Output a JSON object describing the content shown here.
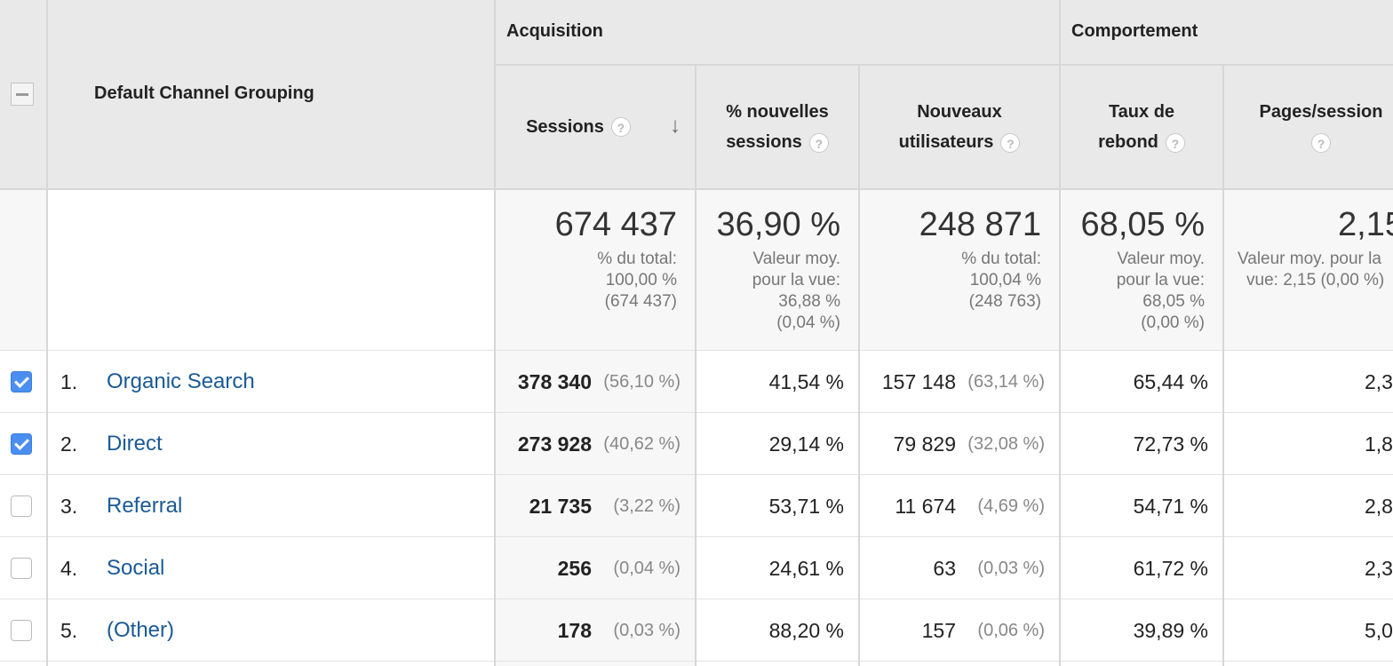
{
  "header": {
    "dimension_label": "Default Channel Grouping",
    "groups": {
      "acquisition": "Acquisition",
      "behaviour": "Comportement"
    },
    "columns": {
      "sessions": "Sessions",
      "new_sessions_l1": "% nouvelles",
      "new_sessions_l2": "sessions",
      "new_users_l1": "Nouveaux",
      "new_users_l2": "utilisateurs",
      "bounce_l1": "Taux de",
      "bounce_l2": "rebond",
      "pages_session": "Pages/session"
    },
    "help_glyph": "?",
    "sort_glyph": "↓",
    "sort_icon": "arrow-down-icon"
  },
  "totals": {
    "sessions": {
      "value": "674 437",
      "sub1": "% du total:",
      "sub2": "100,00 %",
      "sub3": "(674 437)"
    },
    "new_sessions": {
      "value": "36,90 %",
      "sub1": "Valeur moy.",
      "sub2": "pour la vue:",
      "sub3": "36,88 %",
      "sub4": "(0,04 %)"
    },
    "new_users": {
      "value": "248 871",
      "sub1": "% du total:",
      "sub2": "100,04 %",
      "sub3": "(248 763)"
    },
    "bounce": {
      "value": "68,05 %",
      "sub1": "Valeur moy.",
      "sub2": "pour la vue:",
      "sub3": "68,05 %",
      "sub4": "(0,00 %)"
    },
    "pages": {
      "value": "2,15",
      "sub1": "Valeur moy. pour la",
      "sub2": "vue: 2,15 (0,00 %)"
    }
  },
  "rows": [
    {
      "num": "1.",
      "channel": "Organic Search",
      "checked": true,
      "sessions": "378 340",
      "sessions_pct": "(56,10 %)",
      "new_sessions": "41,54 %",
      "new_users": "157 148",
      "new_users_pct": "(63,14 %)",
      "bounce": "65,44 %",
      "pages": "2,3"
    },
    {
      "num": "2.",
      "channel": "Direct",
      "checked": true,
      "sessions": "273 928",
      "sessions_pct": "(40,62 %)",
      "new_sessions": "29,14 %",
      "new_users": "79 829",
      "new_users_pct": "(32,08 %)",
      "bounce": "72,73 %",
      "pages": "1,8"
    },
    {
      "num": "3.",
      "channel": "Referral",
      "checked": false,
      "sessions": "21 735",
      "sessions_pct": "(3,22 %)",
      "new_sessions": "53,71 %",
      "new_users": "11 674",
      "new_users_pct": "(4,69 %)",
      "bounce": "54,71 %",
      "pages": "2,8"
    },
    {
      "num": "4.",
      "channel": "Social",
      "checked": false,
      "sessions": "256",
      "sessions_pct": "(0,04 %)",
      "new_sessions": "24,61 %",
      "new_users": "63",
      "new_users_pct": "(0,03 %)",
      "bounce": "61,72 %",
      "pages": "2,3"
    },
    {
      "num": "5.",
      "channel": "(Other)",
      "checked": false,
      "sessions": "178",
      "sessions_pct": "(0,03 %)",
      "new_sessions": "88,20 %",
      "new_users": "157",
      "new_users_pct": "(0,06 %)",
      "bounce": "39,89 %",
      "pages": "5,0"
    }
  ]
}
